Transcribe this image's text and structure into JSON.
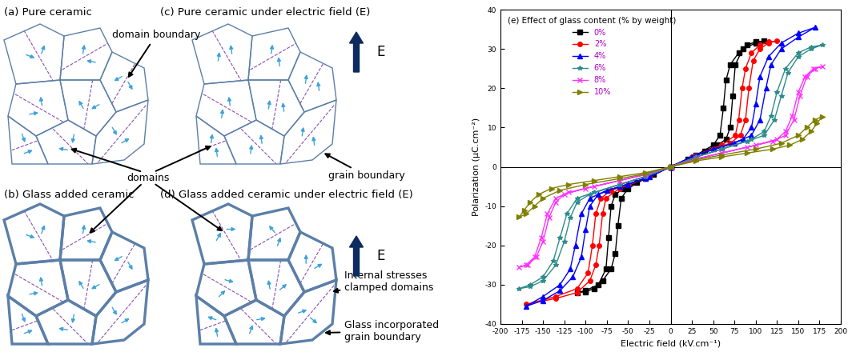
{
  "diagram": {
    "panels": [
      "(a) Pure ceramic",
      "(c) Pure ceramic under electric field (E)",
      "(b) Glass added ceramic",
      "(d) Glass added ceramic under electric field (E)"
    ],
    "field_label": "E",
    "annotations": {
      "domain_boundary": "domain boundary",
      "grain_boundary": "grain boundary",
      "domains": "domains",
      "clamped": "Internal stresses\nclamped domains",
      "glass_boundary": "Glass incorporated\ngrain boundary"
    }
  },
  "chart_data": {
    "type": "line",
    "title": "(e) Effect of glass content (% by weight)",
    "x_label": "Electric field (kV.cm⁻¹)",
    "y_label": "Polarization (μC.cm⁻²)",
    "xlim": [
      -200,
      200
    ],
    "ylim": [
      -40,
      40
    ],
    "xticks": [
      -200,
      -175,
      -150,
      -125,
      -100,
      -75,
      -50,
      -25,
      0,
      25,
      50,
      75,
      100,
      125,
      150,
      175,
      200
    ],
    "yticks": [
      -40,
      -30,
      -20,
      -10,
      0,
      10,
      20,
      30,
      40
    ],
    "legend": "upper left",
    "series": [
      {
        "name": "0%",
        "color": "#000000",
        "marker": "square",
        "x": [
          0,
          20,
          40,
          55,
          65,
          70,
          73,
          76,
          85,
          100,
          110,
          100,
          90,
          80,
          70,
          65,
          62,
          58,
          50,
          30,
          0,
          -20,
          -40,
          -55,
          -65,
          -70,
          -73,
          -76,
          -85,
          -100,
          -110,
          -100,
          -90,
          -80,
          -70,
          -65,
          -62,
          -58,
          -50,
          -30,
          0
        ],
        "values": [
          0,
          2,
          4,
          5.5,
          7,
          10,
          18,
          26,
          30,
          31.5,
          32,
          31.8,
          31,
          29,
          26,
          22,
          15,
          8,
          5.5,
          3,
          0,
          -2,
          -4,
          -5.5,
          -7,
          -10,
          -18,
          -26,
          -30,
          -31.5,
          -32,
          -31.8,
          -31,
          -29,
          -26,
          -22,
          -15,
          -8,
          -5.5,
          -3,
          0
        ]
      },
      {
        "name": "2%",
        "color": "#ff0000",
        "marker": "circle",
        "x": [
          0,
          25,
          50,
          70,
          82,
          88,
          92,
          97,
          105,
          115,
          125,
          115,
          105,
          95,
          88,
          84,
          80,
          76,
          60,
          30,
          0,
          -25,
          -50,
          -70,
          -82,
          -88,
          -92,
          -97,
          -110,
          -135,
          -170,
          -135,
          -110,
          -95,
          -88,
          -84,
          -80,
          -76,
          -60,
          -30,
          0
        ],
        "values": [
          0,
          2.5,
          4.5,
          6,
          8,
          12,
          20,
          27,
          30,
          31.5,
          32,
          31.8,
          31,
          29,
          25,
          20,
          12,
          8,
          5.5,
          3,
          0,
          -2.5,
          -4.5,
          -6,
          -8,
          -12,
          -20,
          -27,
          -31,
          -33,
          -35,
          -33.5,
          -32,
          -29,
          -25,
          -20,
          -12,
          -8,
          -5.5,
          -3,
          0
        ]
      },
      {
        "name": "4%",
        "color": "#0000ff",
        "marker": "triangle_up",
        "x": [
          0,
          25,
          50,
          75,
          95,
          105,
          112,
          118,
          130,
          150,
          170,
          150,
          130,
          115,
          105,
          100,
          95,
          85,
          60,
          30,
          0,
          -25,
          -50,
          -75,
          -95,
          -105,
          -112,
          -118,
          -130,
          -150,
          -170,
          -150,
          -130,
          -115,
          -105,
          -100,
          -95,
          -85,
          -60,
          -30,
          0
        ],
        "values": [
          0,
          2.5,
          4.5,
          6,
          8,
          12,
          20,
          26,
          30,
          33,
          35.5,
          34,
          31.5,
          28,
          23,
          16,
          10,
          7,
          5,
          3,
          0,
          -2.5,
          -4.5,
          -6,
          -8,
          -12,
          -20,
          -26,
          -30,
          -33,
          -35.5,
          -34,
          -31.5,
          -28,
          -23,
          -16,
          -10,
          -7,
          -5,
          -3,
          0
        ]
      },
      {
        "name": "6%",
        "color": "#2e8b8b",
        "marker": "star",
        "x": [
          0,
          30,
          60,
          90,
          110,
          122,
          130,
          138,
          150,
          165,
          178,
          165,
          150,
          135,
          125,
          118,
          110,
          95,
          60,
          30,
          0,
          -30,
          -60,
          -90,
          -110,
          -122,
          -130,
          -138,
          -150,
          -165,
          -178,
          -165,
          -150,
          -135,
          -125,
          -118,
          -110,
          -95,
          -60,
          -30,
          0
        ],
        "values": [
          0,
          2.5,
          4.5,
          6.5,
          8,
          12,
          18,
          24,
          28,
          30,
          31,
          30.5,
          29,
          25,
          19,
          13,
          9,
          7,
          4.5,
          2.5,
          0,
          -2.5,
          -4.5,
          -6.5,
          -8,
          -12,
          -18,
          -24,
          -28,
          -30,
          -31,
          -30.5,
          -29,
          -25,
          -19,
          -13,
          -9,
          -7,
          -4.5,
          -2.5,
          0
        ]
      },
      {
        "name": "8%",
        "color": "#ff33ff",
        "marker": "x",
        "x": [
          0,
          30,
          60,
          90,
          120,
          135,
          145,
          152,
          160,
          170,
          178,
          168,
          158,
          150,
          143,
          135,
          125,
          100,
          60,
          30,
          0,
          -30,
          -60,
          -90,
          -120,
          -135,
          -145,
          -152,
          -160,
          -170,
          -178,
          -168,
          -158,
          -150,
          -143,
          -135,
          -125,
          -100,
          -60,
          -30,
          0
        ],
        "values": [
          0,
          2,
          3.5,
          5,
          6.5,
          8,
          12,
          18,
          23,
          25,
          25.5,
          25,
          23,
          19,
          13,
          9,
          7,
          5.5,
          3.5,
          2,
          0,
          -2,
          -3.5,
          -5,
          -6.5,
          -8,
          -12,
          -18,
          -23,
          -25,
          -25.5,
          -25,
          -23,
          -19,
          -13,
          -9,
          -7,
          -5.5,
          -3.5,
          -2,
          0
        ]
      },
      {
        "name": "10%",
        "color": "#808000",
        "marker": "triangle_right",
        "x": [
          0,
          30,
          60,
          90,
          120,
          140,
          155,
          165,
          172,
          178,
          170,
          160,
          150,
          130,
          100,
          60,
          30,
          0,
          -30,
          -60,
          -90,
          -120,
          -140,
          -155,
          -165,
          -172,
          -178,
          -170,
          -160,
          -150,
          -130,
          -100,
          -60,
          -30,
          0
        ],
        "values": [
          0,
          1.5,
          2.5,
          3.5,
          4.5,
          5.5,
          7,
          9,
          11,
          12.8,
          12,
          10,
          8,
          6,
          4.5,
          3,
          1.8,
          0,
          -1.5,
          -2.5,
          -3.5,
          -4.5,
          -5.5,
          -7,
          -9,
          -11,
          -12.8,
          -12,
          -10,
          -8,
          -6,
          -4.5,
          -3,
          -1.8,
          0
        ]
      }
    ]
  }
}
